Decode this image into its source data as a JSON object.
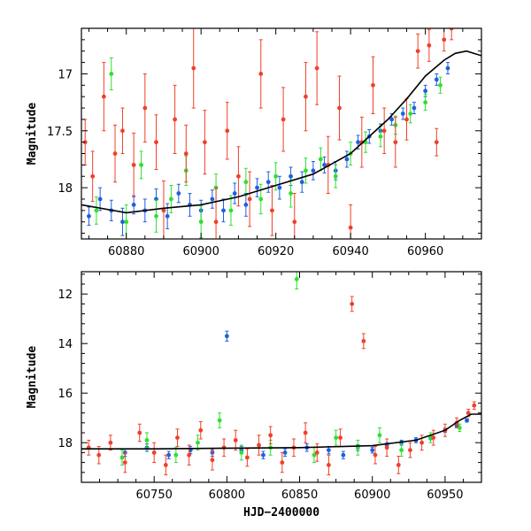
{
  "chart_data": [
    {
      "type": "scatter",
      "panel": "top",
      "title": "",
      "xlabel": "",
      "ylabel": "Magnitude",
      "xlim": [
        60868,
        60975
      ],
      "ylim": [
        18.45,
        16.6
      ],
      "y_inverted": true,
      "xticks": [
        60880,
        60900,
        60920,
        60940,
        60960
      ],
      "yticks": [
        17,
        17.5,
        18
      ],
      "ytick_labels": [
        "17",
        "17.5",
        "18"
      ],
      "series": [
        {
          "name": "blue",
          "color": "#1f5fe0",
          "x": [
            60870,
            60873,
            60876,
            60879,
            60882,
            60885,
            60888,
            60891,
            60894,
            60897,
            60900,
            60903,
            60906,
            60909,
            60912,
            60915,
            60918,
            60921,
            60924,
            60927,
            60930,
            60933,
            60936,
            60939,
            60942,
            60945,
            60948,
            60951,
            60954,
            60957,
            60960,
            60963,
            60966
          ],
          "y": [
            18.25,
            18.1,
            18.2,
            18.3,
            18.15,
            18.2,
            18.1,
            18.25,
            18.05,
            18.15,
            18.2,
            18.1,
            18.2,
            18.05,
            18.15,
            18.0,
            17.95,
            18.0,
            17.9,
            17.95,
            17.85,
            17.8,
            17.85,
            17.75,
            17.6,
            17.55,
            17.5,
            17.4,
            17.35,
            17.3,
            17.15,
            17.05,
            16.95
          ],
          "err": [
            0.08,
            0.1,
            0.09,
            0.12,
            0.08,
            0.1,
            0.09,
            0.11,
            0.08,
            0.1,
            0.09,
            0.08,
            0.1,
            0.09,
            0.1,
            0.08,
            0.09,
            0.1,
            0.08,
            0.09,
            0.08,
            0.07,
            0.08,
            0.07,
            0.06,
            0.06,
            0.06,
            0.05,
            0.05,
            0.05,
            0.05,
            0.05,
            0.05
          ]
        },
        {
          "name": "green",
          "color": "#2ee02e",
          "x": [
            60872,
            60876,
            60880,
            60884,
            60888,
            60892,
            60896,
            60900,
            60904,
            60908,
            60912,
            60916,
            60920,
            60924,
            60928,
            60932,
            60936,
            60940,
            60944,
            60948,
            60952,
            60956,
            60960,
            60964
          ],
          "y": [
            18.2,
            17.0,
            18.3,
            17.8,
            18.25,
            18.1,
            17.85,
            18.3,
            18.0,
            18.2,
            17.95,
            18.1,
            17.9,
            18.05,
            17.85,
            17.75,
            17.9,
            17.7,
            17.6,
            17.55,
            17.45,
            17.35,
            17.25,
            17.1
          ],
          "err": [
            0.12,
            0.14,
            0.15,
            0.12,
            0.14,
            0.12,
            0.13,
            0.14,
            0.12,
            0.13,
            0.12,
            0.13,
            0.12,
            0.12,
            0.11,
            0.1,
            0.1,
            0.1,
            0.09,
            0.09,
            0.08,
            0.08,
            0.07,
            0.07
          ]
        },
        {
          "name": "red",
          "color": "#f0402a",
          "x": [
            60869,
            60871,
            60874,
            60877,
            60879,
            60882,
            60885,
            60888,
            60890,
            60893,
            60896,
            60898,
            60901,
            60904,
            60907,
            60910,
            60913,
            60916,
            60919,
            60922,
            60925,
            60928,
            60931,
            60934,
            60937,
            60940,
            60943,
            60946,
            60949,
            60952,
            60955,
            60958,
            60961,
            60963,
            60965,
            60967
          ],
          "y": [
            17.6,
            17.9,
            17.2,
            17.7,
            17.5,
            17.8,
            17.3,
            17.6,
            18.2,
            17.4,
            17.7,
            16.95,
            17.6,
            18.3,
            17.5,
            17.9,
            18.1,
            17.0,
            18.2,
            17.4,
            18.3,
            17.2,
            16.95,
            17.8,
            17.3,
            18.35,
            17.6,
            17.1,
            17.5,
            17.6,
            17.4,
            16.8,
            16.75,
            17.6,
            16.7,
            16.6
          ],
          "err": [
            0.2,
            0.22,
            0.3,
            0.25,
            0.2,
            0.28,
            0.3,
            0.24,
            0.26,
            0.3,
            0.25,
            0.35,
            0.28,
            0.3,
            0.25,
            0.26,
            0.24,
            0.3,
            0.22,
            0.28,
            0.25,
            0.3,
            0.32,
            0.25,
            0.28,
            0.2,
            0.22,
            0.25,
            0.2,
            0.22,
            0.18,
            0.15,
            0.14,
            0.12,
            0.1,
            0.1
          ]
        }
      ],
      "model": {
        "x": [
          60868,
          60880,
          60890,
          60900,
          60910,
          60920,
          60930,
          60940,
          60950,
          60955,
          60960,
          60965,
          60968,
          60971,
          60975
        ],
        "y": [
          18.15,
          18.22,
          18.18,
          18.15,
          18.08,
          17.98,
          17.88,
          17.7,
          17.4,
          17.22,
          17.02,
          16.88,
          16.82,
          16.8,
          16.84
        ]
      }
    },
    {
      "type": "scatter",
      "panel": "bottom",
      "title": "",
      "xlabel": "HJD−2400000",
      "ylabel": "Magnitude",
      "xlim": [
        60700,
        60975
      ],
      "ylim": [
        19.6,
        11.1
      ],
      "y_inverted": true,
      "xticks": [
        60750,
        60800,
        60850,
        60900,
        60950
      ],
      "yticks": [
        12,
        14,
        16,
        18
      ],
      "ytick_labels": [
        "12",
        "14",
        "16",
        "18"
      ],
      "series": [
        {
          "name": "blue",
          "color": "#1f5fe0",
          "x": [
            60730,
            60745,
            60760,
            60775,
            60790,
            60800,
            60810,
            60825,
            60840,
            60855,
            60870,
            60880,
            60890,
            60900,
            60910,
            60920,
            60930,
            60940,
            60950,
            60958,
            60965
          ],
          "y": [
            18.4,
            18.2,
            18.5,
            18.3,
            18.4,
            13.7,
            18.3,
            18.5,
            18.4,
            18.2,
            18.3,
            18.5,
            18.2,
            18.3,
            18.1,
            18.0,
            17.9,
            17.8,
            17.5,
            17.3,
            17.1
          ],
          "err": [
            0.15,
            0.15,
            0.15,
            0.15,
            0.15,
            0.2,
            0.15,
            0.15,
            0.15,
            0.15,
            0.15,
            0.15,
            0.12,
            0.12,
            0.1,
            0.1,
            0.1,
            0.08,
            0.08,
            0.07,
            0.07
          ]
        },
        {
          "name": "green",
          "color": "#2ee02e",
          "x": [
            60728,
            60745,
            60765,
            60780,
            60795,
            60810,
            60830,
            60848,
            60860,
            60875,
            60890,
            60905,
            60920,
            60940,
            60960
          ],
          "y": [
            18.6,
            17.9,
            18.5,
            18.0,
            17.1,
            18.4,
            18.2,
            11.4,
            18.5,
            17.8,
            18.2,
            17.7,
            18.3,
            17.8,
            17.4
          ],
          "err": [
            0.3,
            0.3,
            0.3,
            0.3,
            0.3,
            0.3,
            0.3,
            0.4,
            0.3,
            0.3,
            0.3,
            0.3,
            0.25,
            0.2,
            0.15
          ]
        },
        {
          "name": "red",
          "color": "#f0402a",
          "x": [
            60705,
            60712,
            60720,
            60730,
            60740,
            60750,
            60758,
            60766,
            60774,
            60782,
            60790,
            60798,
            60806,
            60814,
            60822,
            60830,
            60838,
            60846,
            60854,
            60862,
            60870,
            60878,
            60886,
            60894,
            60902,
            60910,
            60918,
            60926,
            60934,
            60942,
            60950,
            60958,
            60966,
            60970
          ],
          "y": [
            18.2,
            18.5,
            18.0,
            18.8,
            17.6,
            18.4,
            18.9,
            17.8,
            18.5,
            17.5,
            18.7,
            18.2,
            17.9,
            18.6,
            18.1,
            17.7,
            18.8,
            18.2,
            17.6,
            18.4,
            18.9,
            17.8,
            12.4,
            13.9,
            18.5,
            18.2,
            18.9,
            18.3,
            18.0,
            17.8,
            17.5,
            17.2,
            16.8,
            16.5
          ],
          "err": [
            0.3,
            0.35,
            0.3,
            0.4,
            0.35,
            0.4,
            0.4,
            0.35,
            0.4,
            0.35,
            0.4,
            0.35,
            0.4,
            0.35,
            0.4,
            0.35,
            0.4,
            0.35,
            0.4,
            0.35,
            0.4,
            0.35,
            0.3,
            0.3,
            0.35,
            0.35,
            0.35,
            0.3,
            0.3,
            0.3,
            0.25,
            0.2,
            0.15,
            0.15
          ]
        }
      ],
      "model": {
        "x": [
          60700,
          60750,
          60800,
          60850,
          60900,
          60930,
          60950,
          60960,
          60968,
          60975
        ],
        "y": [
          18.25,
          18.25,
          18.22,
          18.2,
          18.12,
          17.9,
          17.5,
          17.1,
          16.85,
          16.85
        ]
      }
    }
  ]
}
